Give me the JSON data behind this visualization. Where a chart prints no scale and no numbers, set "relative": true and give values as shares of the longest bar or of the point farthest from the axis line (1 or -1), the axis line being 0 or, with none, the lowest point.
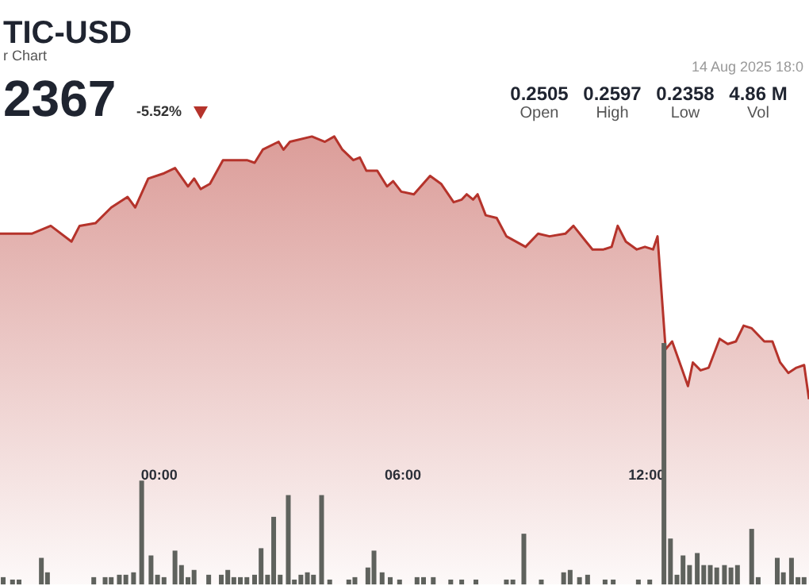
{
  "chart_data": [
    {
      "type": "area",
      "title": "TIC-USD",
      "subtitle": "r Chart",
      "relative": true,
      "color": "#b5332b",
      "annotations": [
        "2367",
        "-5.52%",
        "14 Aug 2025 18:0",
        "0.2505",
        "Open",
        "0.2597",
        "High",
        "0.2358",
        "Low",
        "4.86 M",
        "Vol"
      ],
      "xlim": [
        -3.92,
        16
      ],
      "xticks": [
        {
          "value": 0,
          "label": "00:00"
        },
        {
          "value": 6,
          "label": "06:00"
        },
        {
          "value": 12,
          "label": "12:00"
        }
      ],
      "x": [
        -3.92,
        -3.45,
        -3.14,
        -2.67,
        -2.16,
        -1.96,
        -1.57,
        -1.18,
        -0.78,
        -0.59,
        -0.27,
        0.12,
        0.39,
        0.71,
        0.86,
        1.02,
        1.25,
        1.57,
        2.16,
        2.35,
        2.55,
        2.94,
        3.06,
        3.22,
        3.76,
        4.08,
        4.31,
        4.51,
        4.78,
        4.94,
        5.1,
        5.37,
        5.61,
        5.76,
        5.96,
        6.27,
        6.67,
        6.94,
        7.25,
        7.45,
        7.57,
        7.73,
        7.84,
        8.04,
        8.31,
        8.55,
        9.02,
        9.33,
        9.61,
        10,
        10.2,
        10.51,
        10.67,
        10.94,
        11.14,
        11.29,
        11.49,
        11.76,
        11.96,
        12.16,
        12.27,
        12.47,
        12.63,
        12.86,
        13.02,
        13.14,
        13.33,
        13.53,
        13.8,
        14,
        14.2,
        14.39,
        14.59,
        14.9,
        15.1,
        15.29,
        15.49,
        15.69,
        15.88,
        16
      ],
      "values": [
        0.63,
        0.63,
        0.63,
        0.66,
        0.6,
        0.66,
        0.67,
        0.73,
        0.77,
        0.73,
        0.84,
        0.86,
        0.88,
        0.81,
        0.84,
        0.8,
        0.82,
        0.91,
        0.91,
        0.9,
        0.95,
        0.98,
        0.95,
        0.98,
        1,
        0.98,
        1,
        0.95,
        0.91,
        0.92,
        0.87,
        0.87,
        0.81,
        0.83,
        0.79,
        0.78,
        0.85,
        0.82,
        0.75,
        0.76,
        0.78,
        0.76,
        0.78,
        0.7,
        0.69,
        0.62,
        0.58,
        0.63,
        0.62,
        0.63,
        0.66,
        0.6,
        0.57,
        0.57,
        0.58,
        0.66,
        0.6,
        0.57,
        0.58,
        0.57,
        0.62,
        0.19,
        0.22,
        0.12,
        0.05,
        0.14,
        0.11,
        0.12,
        0.23,
        0.21,
        0.22,
        0.28,
        0.27,
        0.22,
        0.22,
        0.14,
        0.1,
        0.12,
        0.13,
        0
      ]
    },
    {
      "type": "bar",
      "relative": true,
      "color": "#5f625d",
      "xlim": [
        -3.92,
        16
      ],
      "x": [
        -3.84,
        -3.61,
        -3.45,
        -2.9,
        -2.75,
        -1.61,
        -1.33,
        -1.18,
        -0.98,
        -0.82,
        -0.63,
        -0.43,
        -0.2,
        -0.04,
        0.12,
        0.39,
        0.55,
        0.71,
        0.86,
        1.22,
        1.53,
        1.69,
        1.84,
        2,
        2.16,
        2.35,
        2.51,
        2.67,
        2.82,
        2.98,
        3.18,
        3.33,
        3.49,
        3.65,
        3.8,
        4,
        4.2,
        4.67,
        4.82,
        5.14,
        5.29,
        5.49,
        5.69,
        5.92,
        6.35,
        6.51,
        6.75,
        7.18,
        7.45,
        7.8,
        8.55,
        8.71,
        8.98,
        9.41,
        9.96,
        10.12,
        10.35,
        10.55,
        10.98,
        11.18,
        11.8,
        12.08,
        12.43,
        12.59,
        12.75,
        12.9,
        13.06,
        13.25,
        13.41,
        13.57,
        13.73,
        13.92,
        14.08,
        14.24,
        14.59,
        14.75,
        15.22,
        15.37,
        15.57,
        15.73,
        15.88
      ],
      "values": [
        0.03,
        0.02,
        0.02,
        0.11,
        0.05,
        0.03,
        0.03,
        0.03,
        0.04,
        0.04,
        0.05,
        0.43,
        0.12,
        0.04,
        0.03,
        0.14,
        0.08,
        0.03,
        0.06,
        0.04,
        0.04,
        0.06,
        0.03,
        0.03,
        0.03,
        0.04,
        0.15,
        0.04,
        0.28,
        0.04,
        0.37,
        0.02,
        0.04,
        0.05,
        0.04,
        0.37,
        0.02,
        0.02,
        0.03,
        0.07,
        0.14,
        0.05,
        0.03,
        0.02,
        0.03,
        0.03,
        0.03,
        0.02,
        0.02,
        0.02,
        0.02,
        0.02,
        0.21,
        0.02,
        0.05,
        0.06,
        0.03,
        0.04,
        0.02,
        0.02,
        0.02,
        0.02,
        1,
        0.19,
        0.04,
        0.12,
        0.08,
        0.13,
        0.08,
        0.08,
        0.07,
        0.08,
        0.07,
        0.08,
        0.23,
        0.03,
        0.11,
        0.05,
        0.11,
        0.03,
        0.03
      ]
    }
  ]
}
